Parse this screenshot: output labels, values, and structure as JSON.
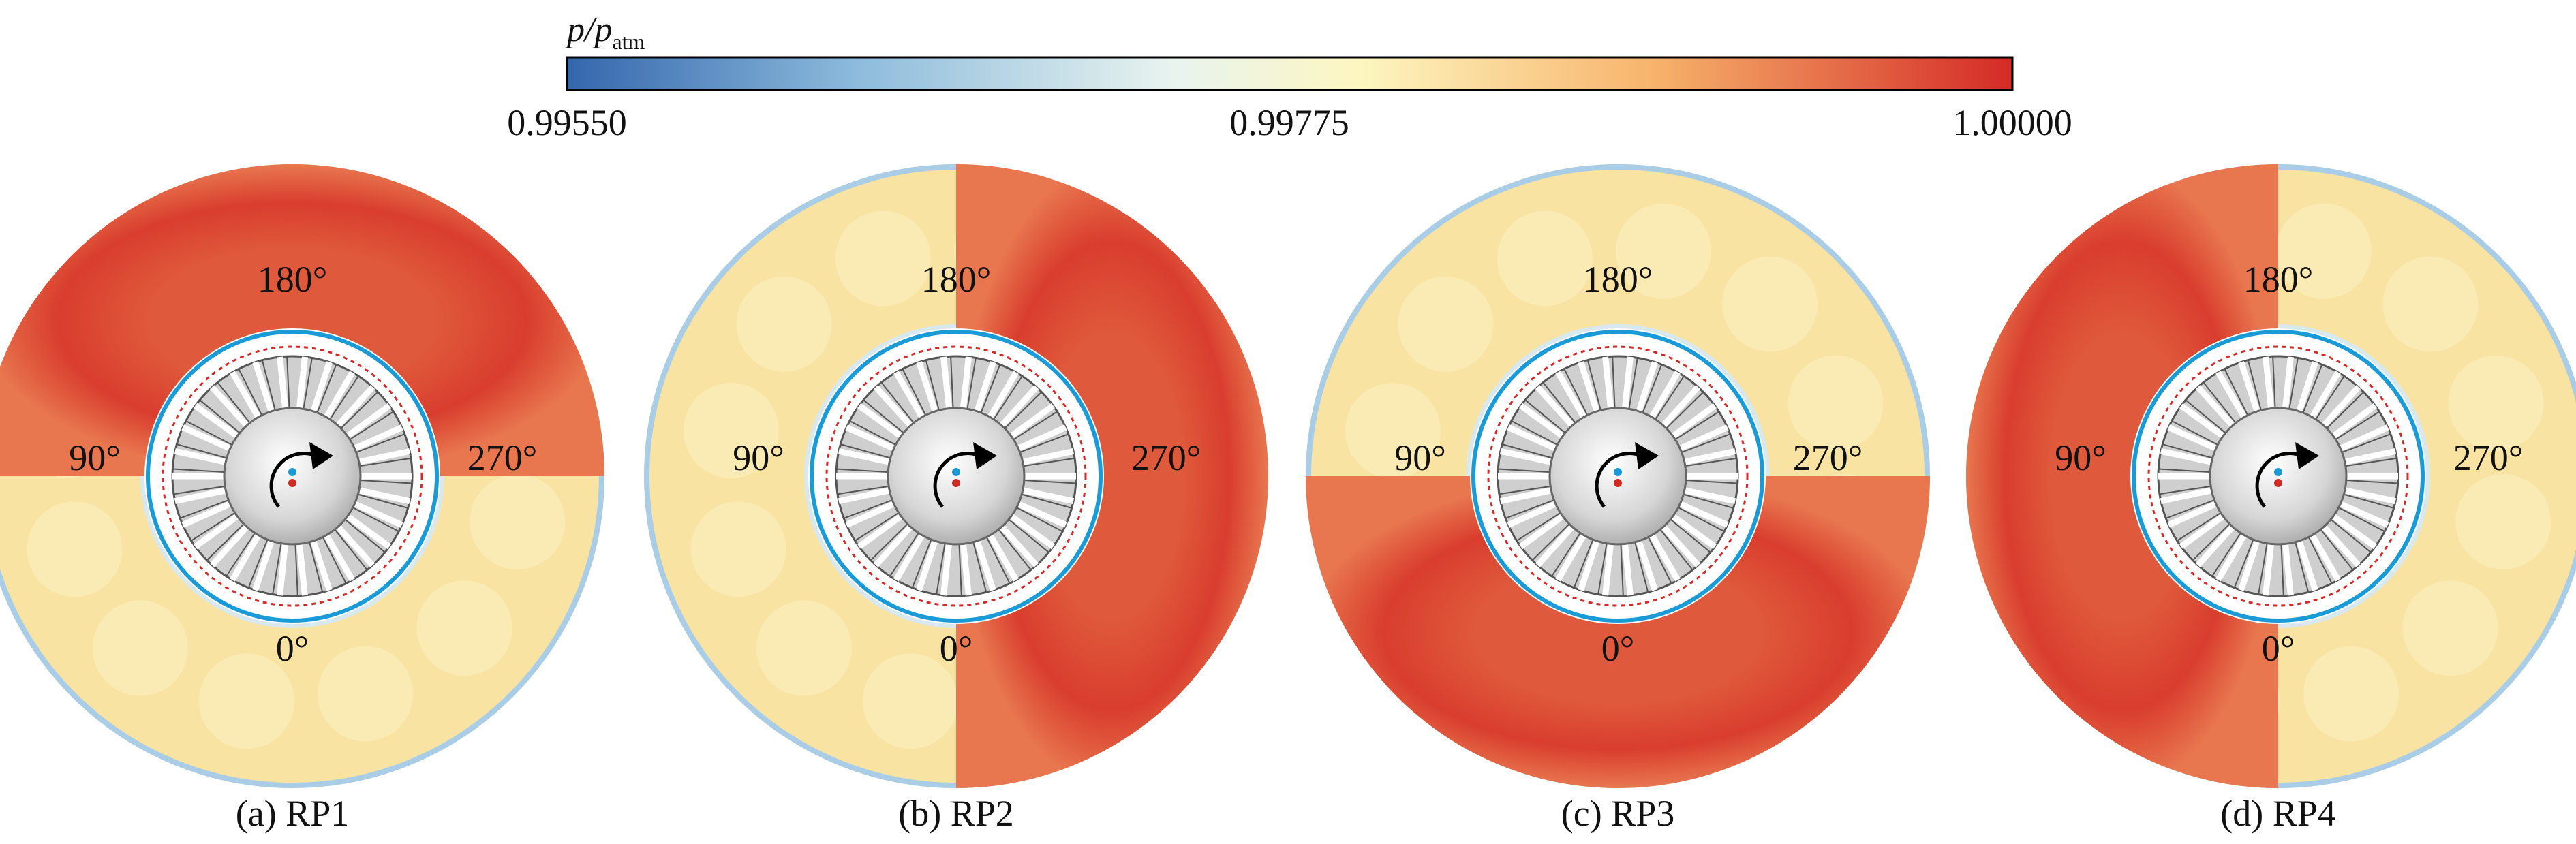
{
  "colorbar": {
    "label": "p/p",
    "label_subscript": "atm",
    "ticks": [
      "0.99550",
      "0.99775",
      "1.00000"
    ]
  },
  "panels": [
    {
      "caption": "(a) RP1",
      "angles": [
        "180°",
        "90°",
        "270°",
        "0°"
      ]
    },
    {
      "caption": "(b) RP2",
      "angles": [
        "180°",
        "90°",
        "270°",
        "0°"
      ]
    },
    {
      "caption": "(c) RP3",
      "angles": [
        "180°",
        "90°",
        "270°",
        "0°"
      ]
    },
    {
      "caption": "(d) RP4",
      "angles": [
        "180°",
        "90°",
        "270°",
        "0°"
      ]
    }
  ]
}
